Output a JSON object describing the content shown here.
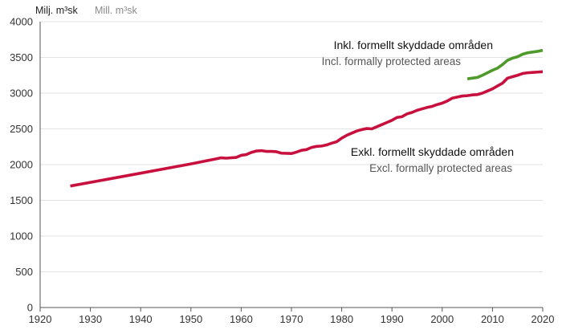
{
  "chart_data": {
    "type": "line",
    "unit_label": {
      "primary": "Milj. m³sk",
      "secondary": "Mill. m³sk"
    },
    "xlim": [
      1920,
      2020
    ],
    "ylim": [
      0,
      4000
    ],
    "x_ticks": [
      1920,
      1930,
      1940,
      1950,
      1960,
      1970,
      1980,
      1990,
      2000,
      2010,
      2020
    ],
    "y_ticks": [
      0,
      500,
      1000,
      1500,
      2000,
      2500,
      3000,
      3500,
      4000
    ],
    "grid": "horizontal",
    "series": [
      {
        "name": "Exkl. formellt skyddade områden",
        "name_secondary": "Excl. formally protected areas",
        "color": "#c8103e",
        "points": [
          [
            1926,
            1700
          ],
          [
            1940,
            1880
          ],
          [
            1950,
            2010
          ],
          [
            1955,
            2080
          ],
          [
            1956,
            2095
          ],
          [
            1957,
            2090
          ],
          [
            1959,
            2100
          ],
          [
            1960,
            2130
          ],
          [
            1961,
            2140
          ],
          [
            1962,
            2170
          ],
          [
            1963,
            2190
          ],
          [
            1964,
            2195
          ],
          [
            1965,
            2185
          ],
          [
            1966,
            2185
          ],
          [
            1967,
            2180
          ],
          [
            1968,
            2160
          ],
          [
            1970,
            2155
          ],
          [
            1971,
            2175
          ],
          [
            1972,
            2200
          ],
          [
            1973,
            2210
          ],
          [
            1974,
            2240
          ],
          [
            1975,
            2255
          ],
          [
            1976,
            2260
          ],
          [
            1977,
            2275
          ],
          [
            1978,
            2300
          ],
          [
            1979,
            2320
          ],
          [
            1980,
            2370
          ],
          [
            1981,
            2410
          ],
          [
            1982,
            2440
          ],
          [
            1983,
            2470
          ],
          [
            1984,
            2490
          ],
          [
            1985,
            2505
          ],
          [
            1986,
            2500
          ],
          [
            1987,
            2530
          ],
          [
            1988,
            2560
          ],
          [
            1989,
            2590
          ],
          [
            1990,
            2620
          ],
          [
            1991,
            2660
          ],
          [
            1992,
            2670
          ],
          [
            1993,
            2710
          ],
          [
            1994,
            2730
          ],
          [
            1995,
            2760
          ],
          [
            1996,
            2780
          ],
          [
            1997,
            2800
          ],
          [
            1998,
            2815
          ],
          [
            1999,
            2840
          ],
          [
            2000,
            2860
          ],
          [
            2001,
            2890
          ],
          [
            2002,
            2930
          ],
          [
            2003,
            2945
          ],
          [
            2004,
            2960
          ],
          [
            2005,
            2965
          ],
          [
            2006,
            2975
          ],
          [
            2007,
            2980
          ],
          [
            2008,
            3000
          ],
          [
            2009,
            3030
          ],
          [
            2010,
            3060
          ],
          [
            2011,
            3100
          ],
          [
            2012,
            3140
          ],
          [
            2013,
            3210
          ],
          [
            2014,
            3230
          ],
          [
            2015,
            3250
          ],
          [
            2016,
            3275
          ],
          [
            2017,
            3285
          ],
          [
            2018,
            3290
          ],
          [
            2019,
            3295
          ],
          [
            2020,
            3300
          ]
        ]
      },
      {
        "name": "Inkl. formellt skyddade områden",
        "name_secondary": "Incl. formally protected areas",
        "color": "#4e9a2a",
        "points": [
          [
            2005,
            3200
          ],
          [
            2006,
            3210
          ],
          [
            2007,
            3220
          ],
          [
            2008,
            3250
          ],
          [
            2009,
            3285
          ],
          [
            2010,
            3320
          ],
          [
            2011,
            3350
          ],
          [
            2012,
            3400
          ],
          [
            2013,
            3460
          ],
          [
            2014,
            3490
          ],
          [
            2015,
            3510
          ],
          [
            2016,
            3545
          ],
          [
            2017,
            3565
          ],
          [
            2018,
            3575
          ],
          [
            2019,
            3585
          ],
          [
            2020,
            3600
          ]
        ]
      }
    ]
  }
}
